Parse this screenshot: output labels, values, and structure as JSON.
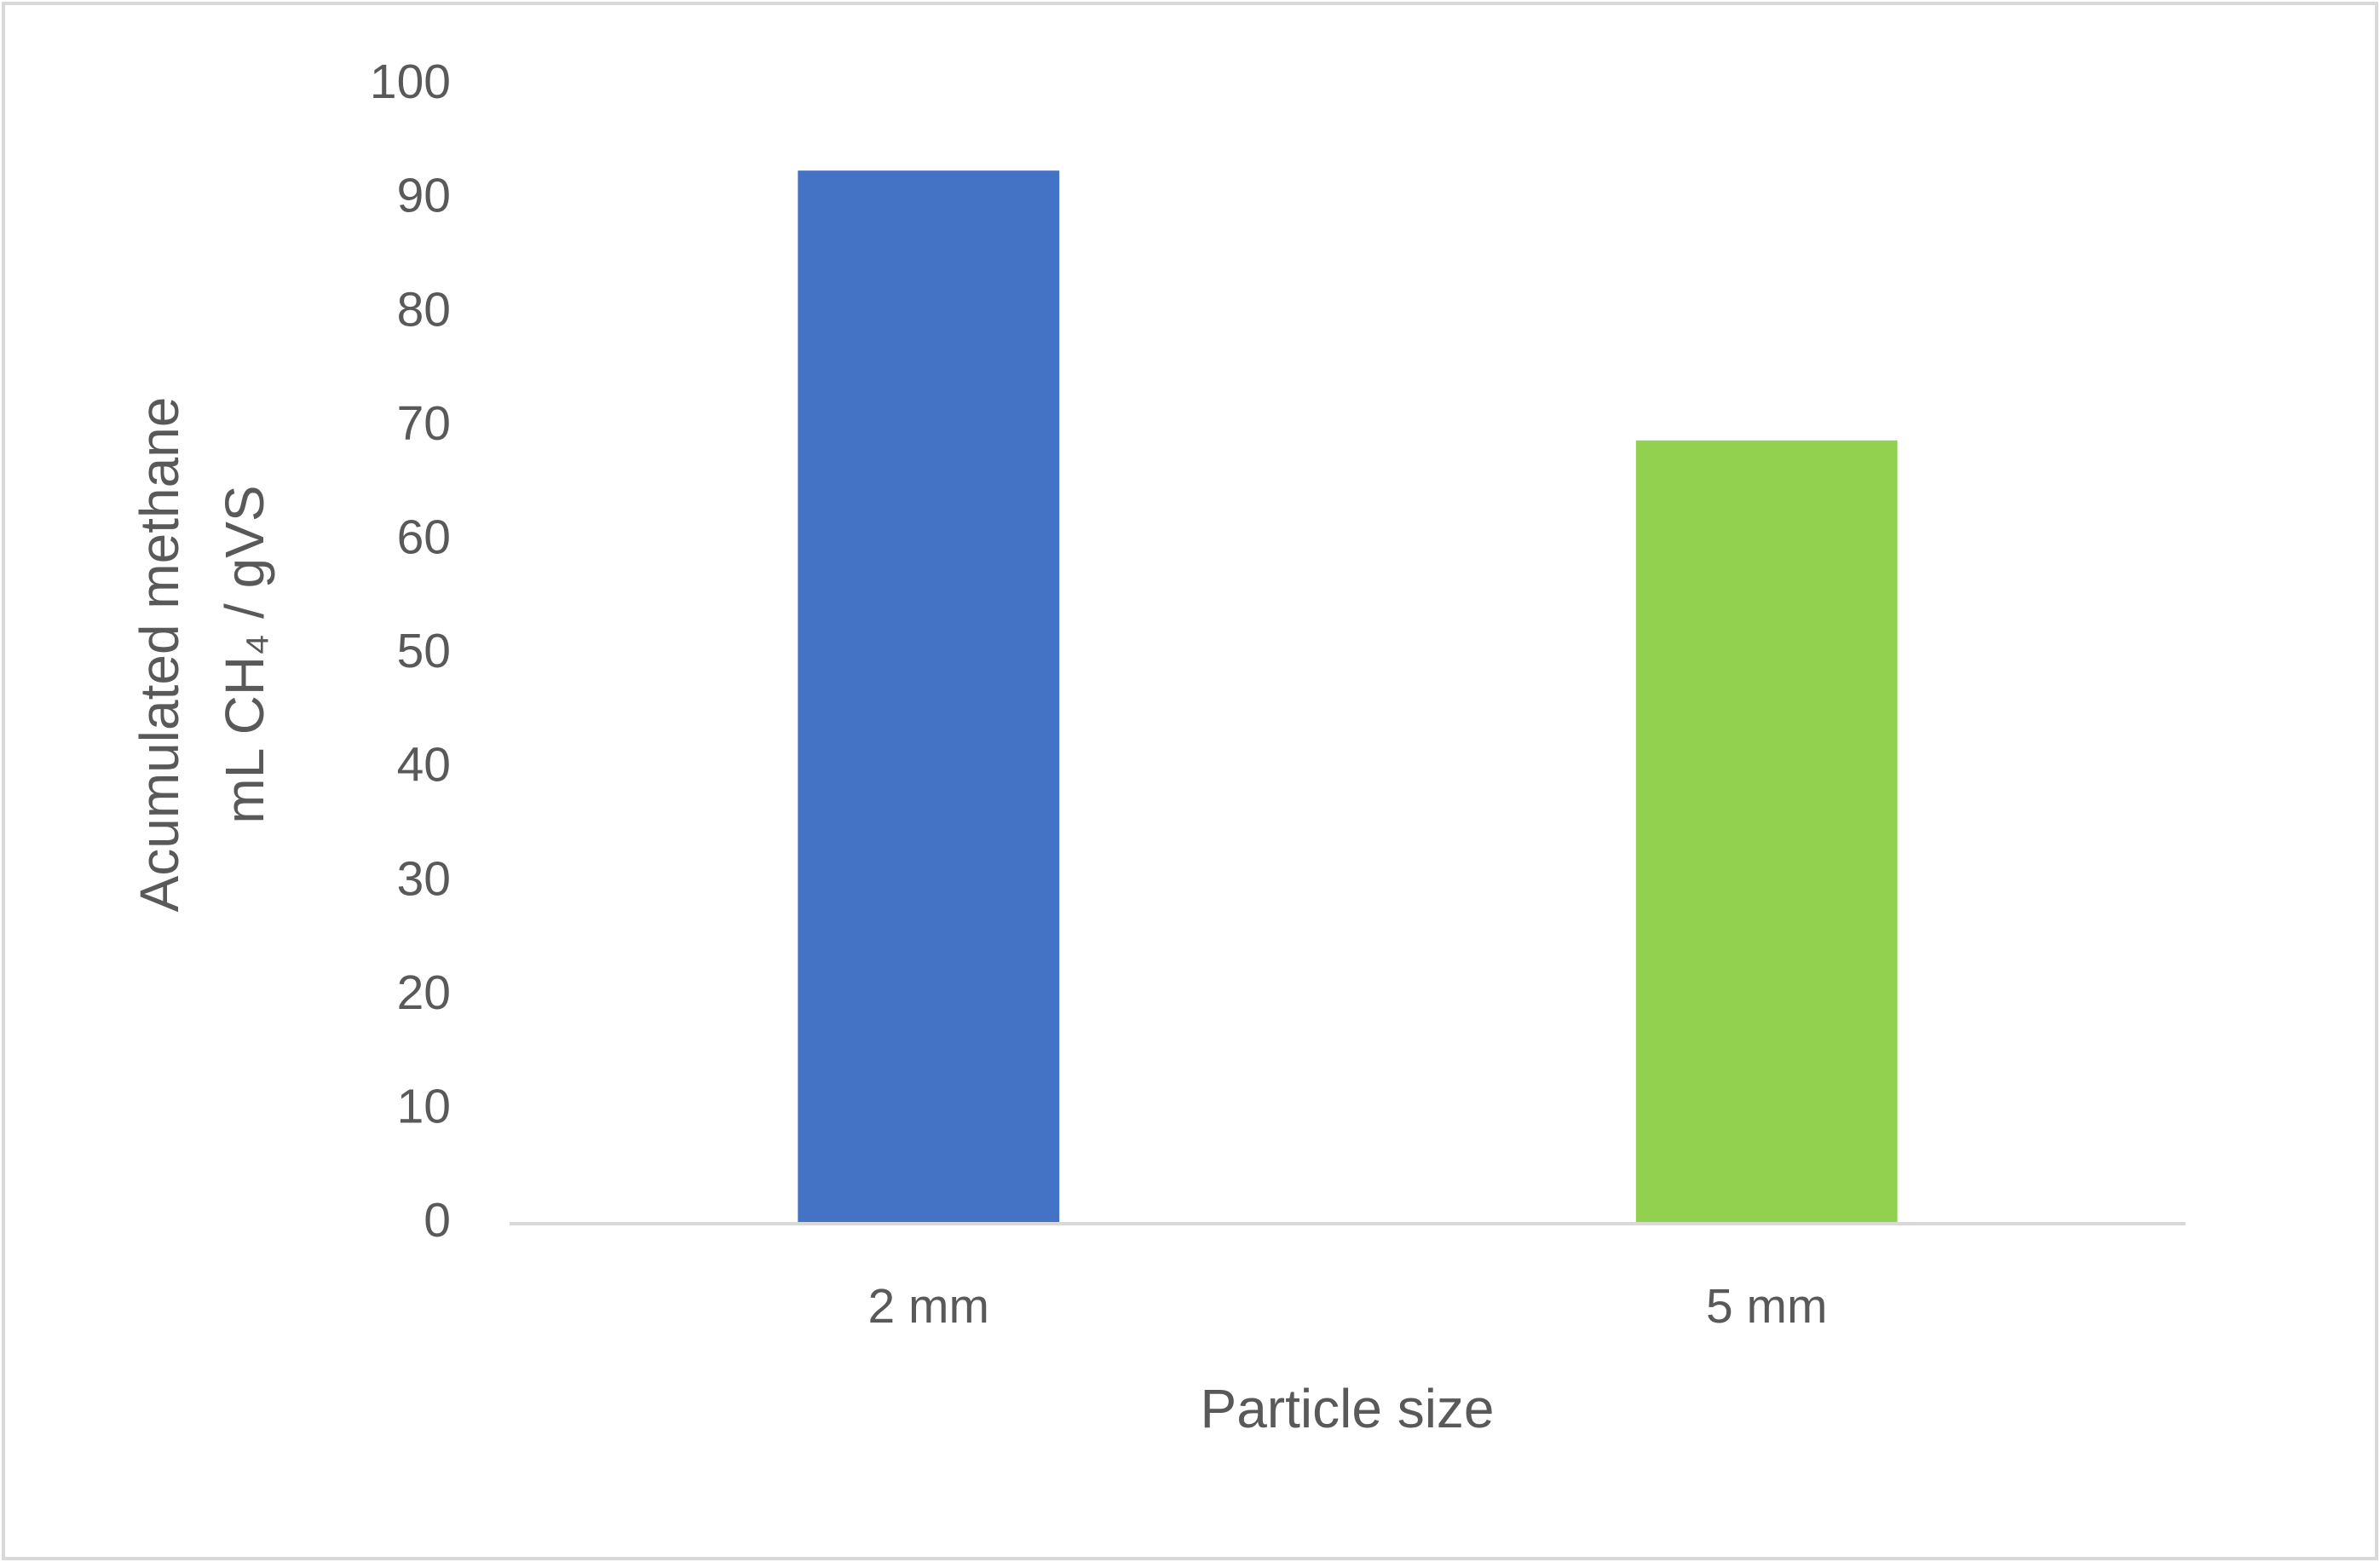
{
  "chart_data": {
    "type": "bar",
    "xlabel": "Particle size",
    "ylabel": [
      "Acumulated methane",
      "mL CH₄ / gVS"
    ],
    "categories": [
      "2 mm",
      "5 mm"
    ],
    "values": [
      92.5,
      68.8
    ],
    "colors": [
      "#4472c4",
      "#92d050"
    ],
    "ylim": [
      0,
      100
    ],
    "yticks": [
      0,
      10,
      20,
      30,
      40,
      50,
      60,
      70,
      80,
      90,
      100
    ],
    "grid": false
  }
}
